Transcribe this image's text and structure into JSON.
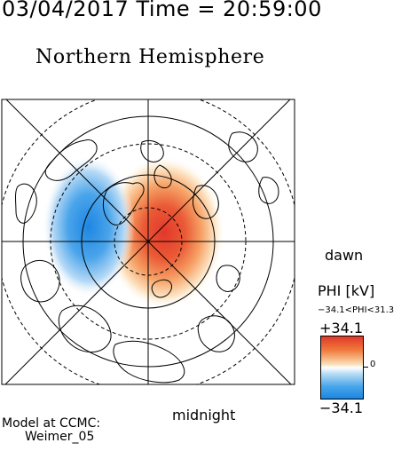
{
  "header": {
    "timestamp": "03/04/2017 Time = 20:59:00",
    "title": "Northern Hemisphere"
  },
  "map": {
    "projection": "polar view, magnetic local time",
    "dawn_label": "dawn",
    "midnight_label": "midnight",
    "colors": {
      "positive": "#e2382a",
      "negative": "#1a86e2",
      "zero": "#ffffff"
    }
  },
  "colorbar": {
    "title": "PHI [kV]",
    "range_text": "−34.1<PHI<31.3",
    "max_label": "+34.1",
    "min_label": "−34.1",
    "zero_label": "0",
    "range": [
      -34.1,
      34.1
    ]
  },
  "footer": {
    "model_line1": "Model at CCMC:",
    "model_line2": "Weimer_05"
  }
}
